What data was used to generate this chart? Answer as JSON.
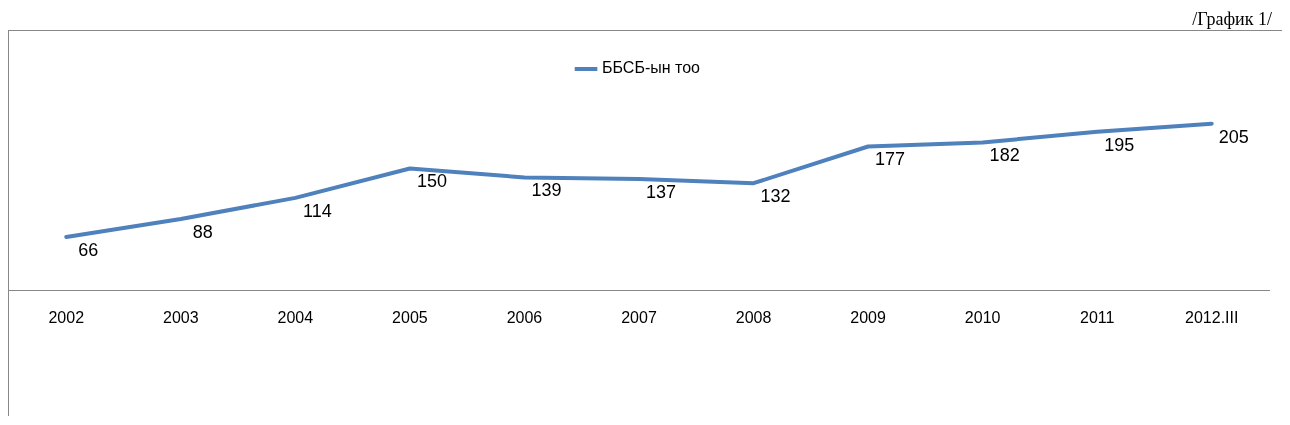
{
  "chart_data": {
    "type": "line",
    "annotations": [
      "/График 1/"
    ],
    "categories": [
      "2002",
      "2003",
      "2004",
      "2005",
      "2006",
      "2007",
      "2008",
      "2009",
      "2010",
      "2011",
      "2012.III"
    ],
    "series": [
      {
        "name": "ББСБ-ын тоо",
        "color": "#4f81bd",
        "values": [
          66,
          88,
          114,
          150,
          139,
          137,
          132,
          177,
          182,
          195,
          205
        ]
      }
    ],
    "data_labels": true,
    "legend": "top",
    "grid": false,
    "marker": "none",
    "line_style": "solid"
  }
}
